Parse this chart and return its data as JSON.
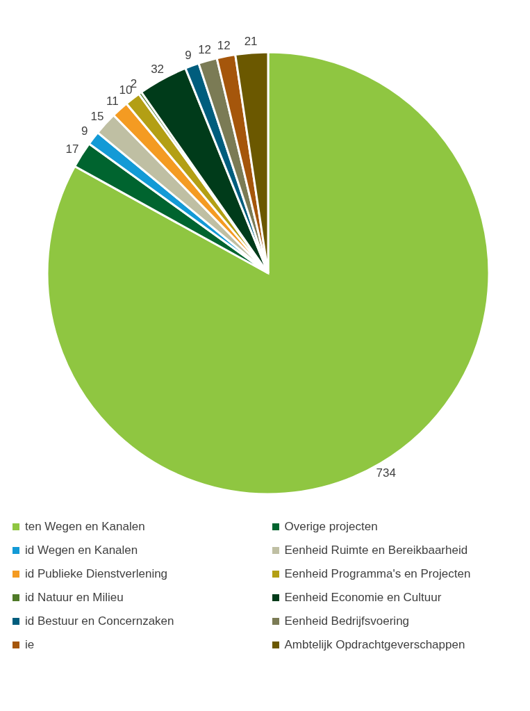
{
  "chart_data": {
    "type": "pie",
    "categories": [
      "ten Wegen en Kanalen",
      "Overige projecten",
      "id Wegen en Kanalen",
      "Eenheid Ruimte en Bereikbaarheid",
      "id Publieke Dienstverlening",
      "Eenheid Programma's en Projecten",
      "id Natuur en Milieu",
      "Eenheid Economie en Cultuur",
      "id Bestuur en Concernzaken",
      "Eenheid Bedrijfsvoering",
      "ie",
      "Ambtelijk Opdrachtgeverschappen"
    ],
    "values": [
      734,
      17,
      9,
      15,
      11,
      10,
      2,
      32,
      9,
      12,
      12,
      21
    ],
    "colors": [
      "#8fc641",
      "#00642f",
      "#139ad6",
      "#bfbfa3",
      "#f49b22",
      "#b39f14",
      "#4f7a28",
      "#003b1a",
      "#005d7d",
      "#7b7b55",
      "#a5560b",
      "#6b5800"
    ],
    "data_labels": true,
    "legend": "bottom"
  }
}
